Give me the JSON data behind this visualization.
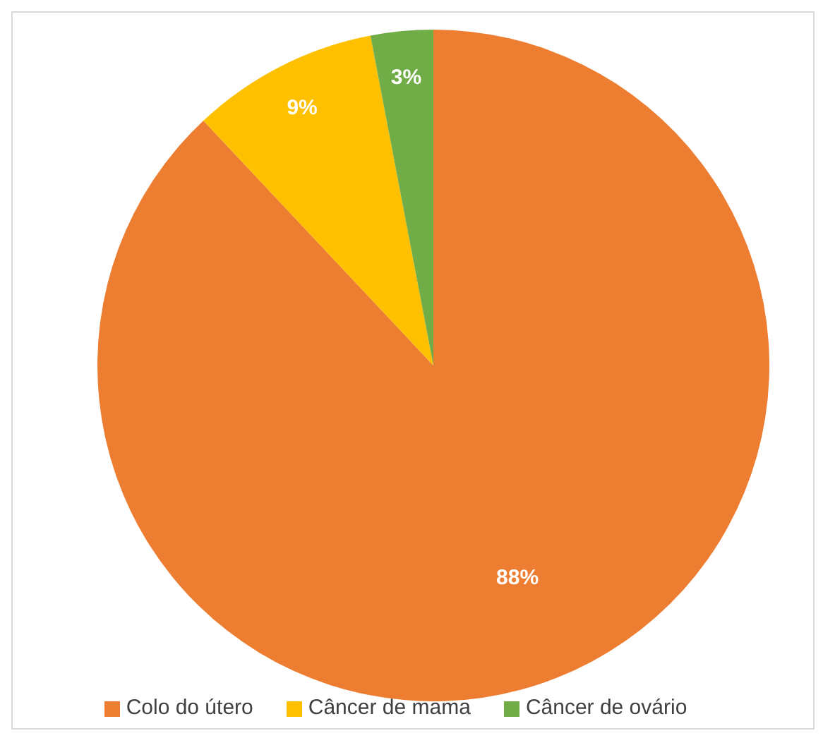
{
  "chart_data": {
    "type": "pie",
    "categories": [
      "Colo do útero",
      "Câncer de mama",
      "Câncer de ovário"
    ],
    "values": [
      88,
      9,
      3
    ],
    "colors": [
      "#ed7d31",
      "#ffc000",
      "#70ad47"
    ],
    "value_labels": [
      "88%",
      "9%",
      "3%"
    ],
    "legend": "bottom"
  }
}
